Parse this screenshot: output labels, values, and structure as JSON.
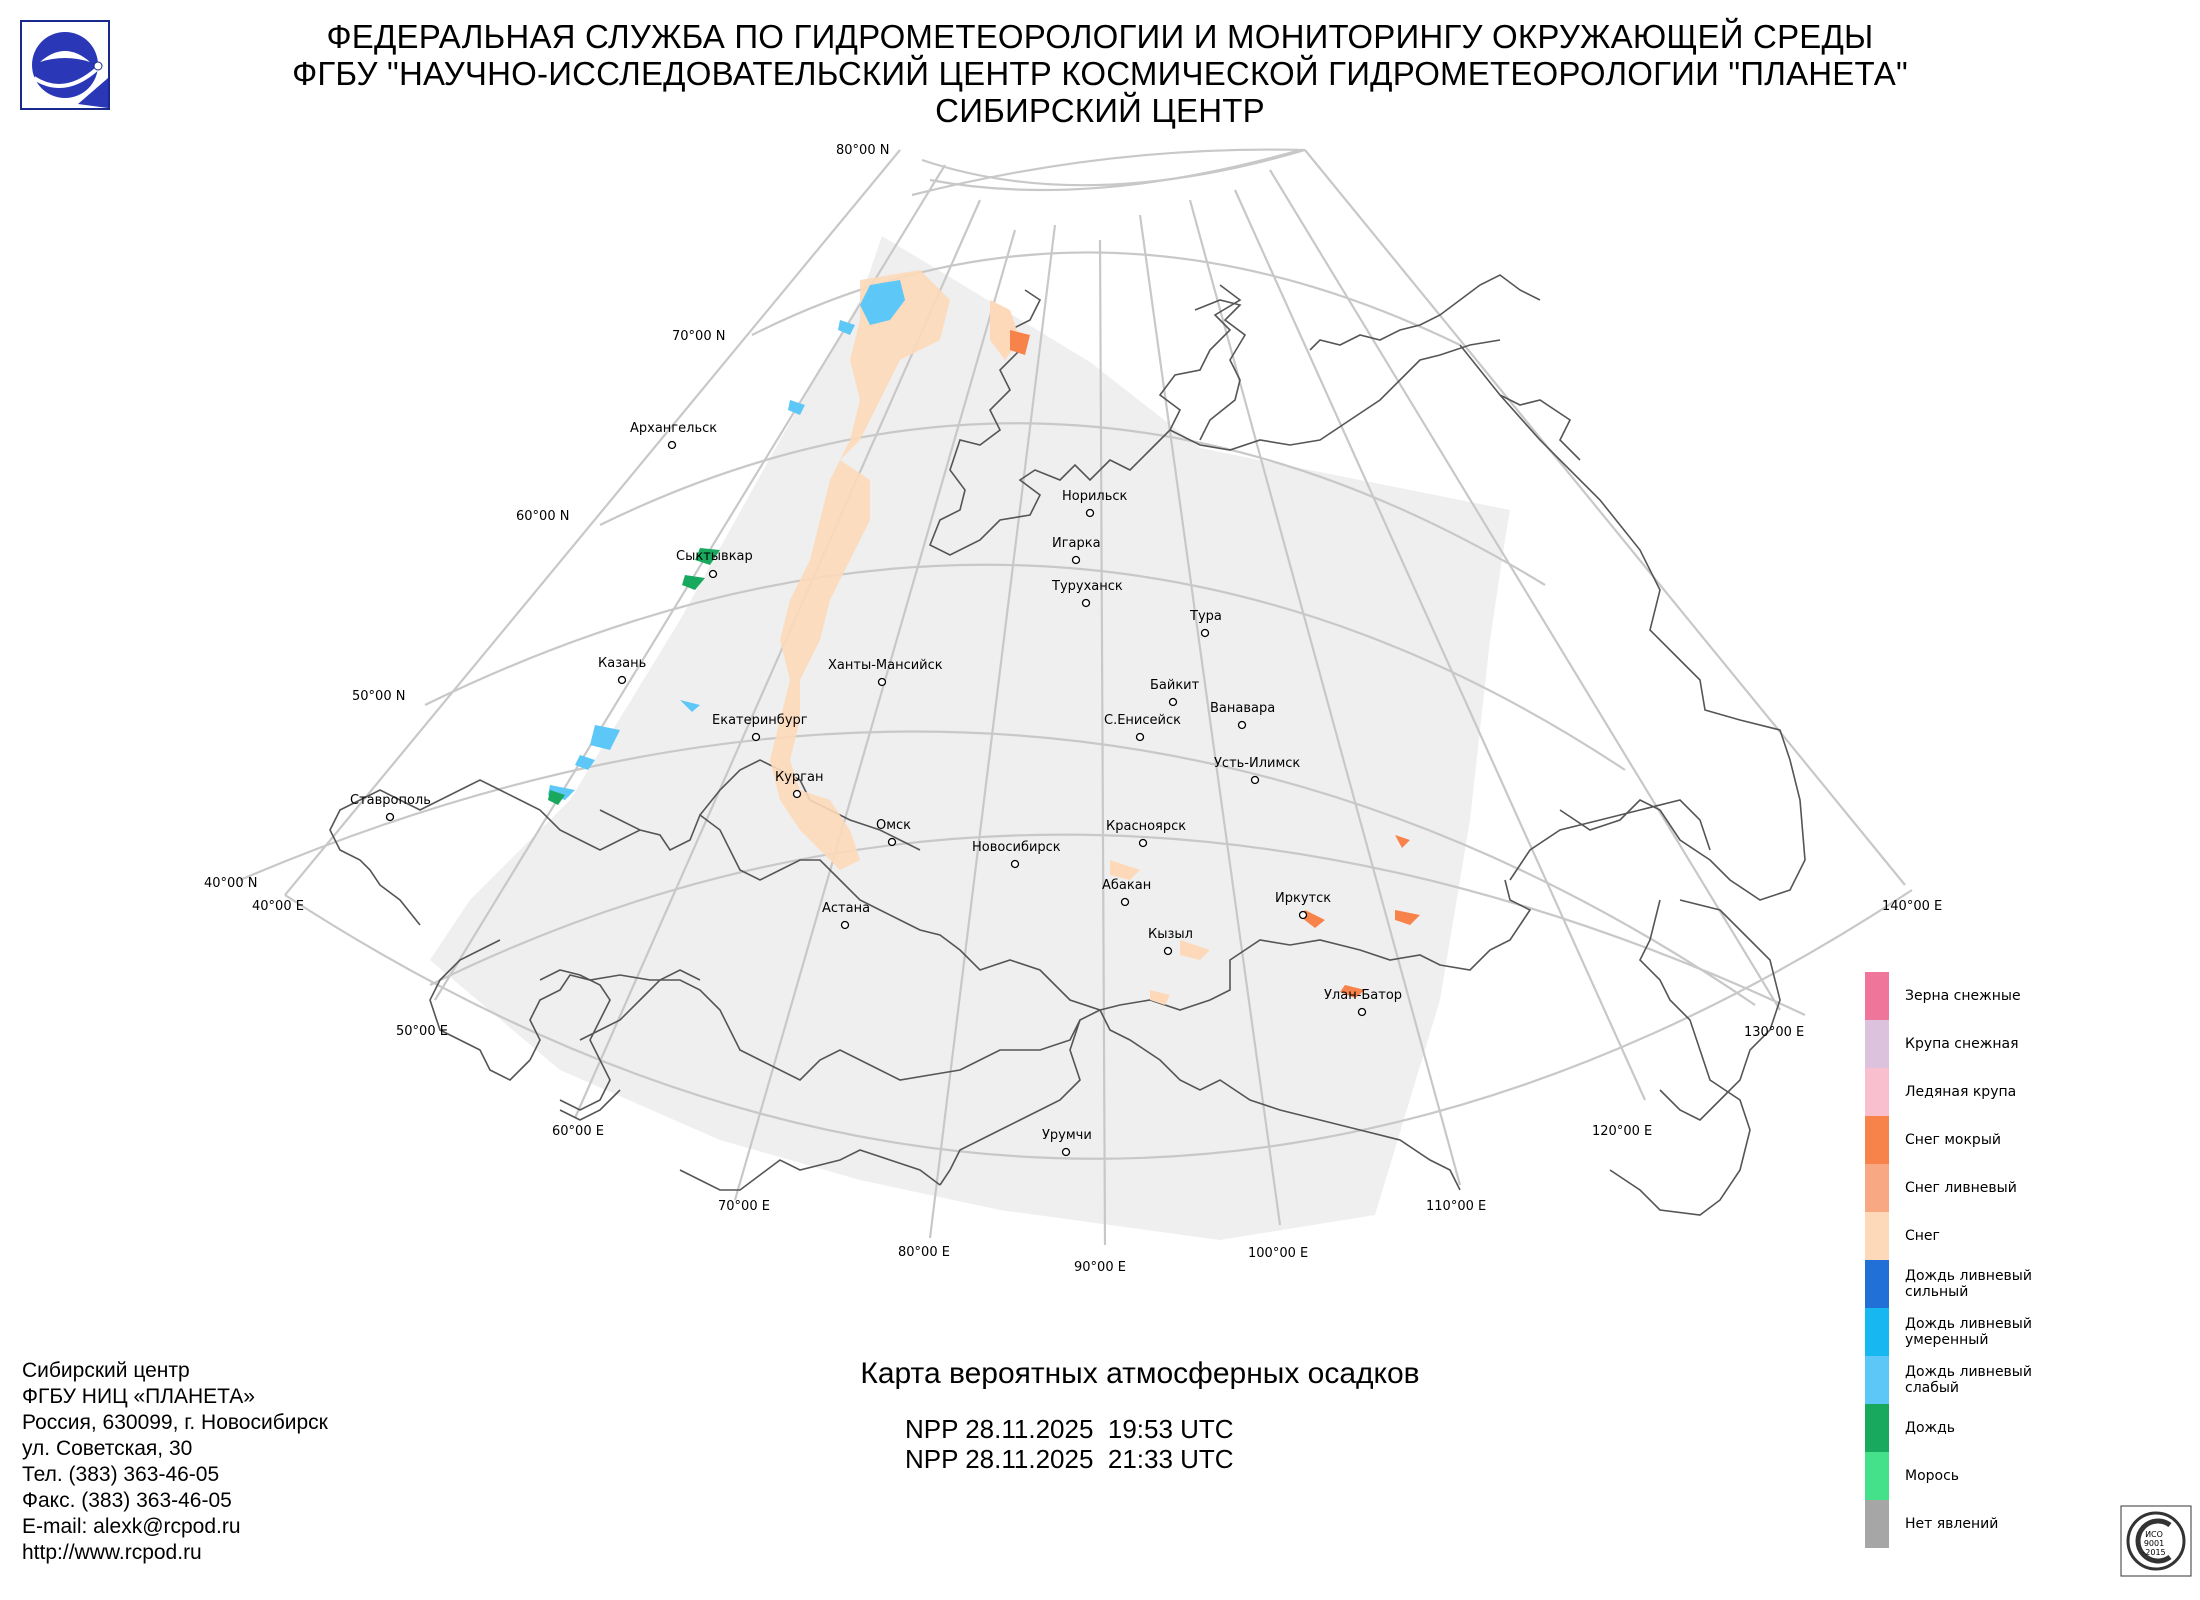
{
  "header": {
    "line1": "ФЕДЕРАЛЬНАЯ СЛУЖБА ПО ГИДРОМЕТЕОРОЛОГИИ И МОНИТОРИНГУ ОКРУЖАЮЩЕЙ СРЕДЫ",
    "line2": "ФГБУ \"НАУЧНО-ИССЛЕДОВАТЕЛЬСКИЙ ЦЕНТР КОСМИЧЕСКОЙ ГИДРОМЕТЕОРОЛОГИИ \"ПЛАНЕТА\"",
    "line3": "СИБИРСКИЙ ЦЕНТР"
  },
  "map": {
    "lat_labels": [
      "80°00 N",
      "70°00 N",
      "60°00 N",
      "50°00 N",
      "40°00 N"
    ],
    "lon_labels": [
      "40°00 E",
      "50°00 E",
      "60°00 E",
      "70°00 E",
      "80°00 E",
      "90°00 E",
      "100°00 E",
      "110°00 E",
      "120°00 E",
      "130°00 E",
      "140°00 E"
    ],
    "cities": [
      "Архангельск",
      "Норильск",
      "Игарка",
      "Туруханск",
      "Сыктывкар",
      "Тура",
      "Казань",
      "Ханты-Мансийск",
      "Байкит",
      "Ванавара",
      "Екатеринбург",
      "С.Енисейск",
      "Усть-Илимск",
      "Курган",
      "Ставрополь",
      "Омск",
      "Красноярск",
      "Новосибирск",
      "Абакан",
      "Иркутск",
      "Астана",
      "Кызыл",
      "Улан-Батор",
      "Урумчи"
    ],
    "colors": {
      "background_swath": "#efefef",
      "grid": "#c8c8c8",
      "coast": "#555555"
    }
  },
  "legend": {
    "items": [
      {
        "label": "Зерна снежные",
        "color": "#f0759a"
      },
      {
        "label": "Крупа снежная",
        "color": "#dcc2dc"
      },
      {
        "label": "Ледяная крупа",
        "color": "#f9bfcf"
      },
      {
        "label": "Снег мокрый",
        "color": "#f7834b"
      },
      {
        "label": "Снег ливневый",
        "color": "#f9a884"
      },
      {
        "label": "Снег",
        "color": "#fdd9b9"
      },
      {
        "label": "Дождь ливневый\nсильный",
        "color": "#2170d8"
      },
      {
        "label": "Дождь ливневый\nумеренный",
        "color": "#17b7f2"
      },
      {
        "label": "Дождь ливневый\nслабый",
        "color": "#5dc8f7"
      },
      {
        "label": "Дождь",
        "color": "#19a95e"
      },
      {
        "label": "Морось",
        "color": "#44e08a"
      },
      {
        "label": "Нет явлений",
        "color": "#a6a6a6"
      }
    ]
  },
  "contact": {
    "lines": [
      "Сибирский центр",
      "ФГБУ НИЦ «ПЛАНЕТА»",
      "Россия, 630099, г. Новосибирск",
      "ул. Советская, 30",
      "Тел. (383) 363-46-05",
      "Факс. (383) 363-46-05",
      "E-mail: alexk@rcpod.ru",
      "http://www.rcpod.ru"
    ]
  },
  "map_title": "Карта вероятных атмосферных осадков",
  "passes": [
    "NPP 28.11.2025  19:53 UTC",
    "NPP 28.11.2025  21:33 UTC"
  ],
  "iso_badge": {
    "top_text": "РОССТАНДАРТ",
    "mid_text": "ИСО\n9001\n-2015",
    "bottom_text": "ПОСТАВЩИК"
  }
}
